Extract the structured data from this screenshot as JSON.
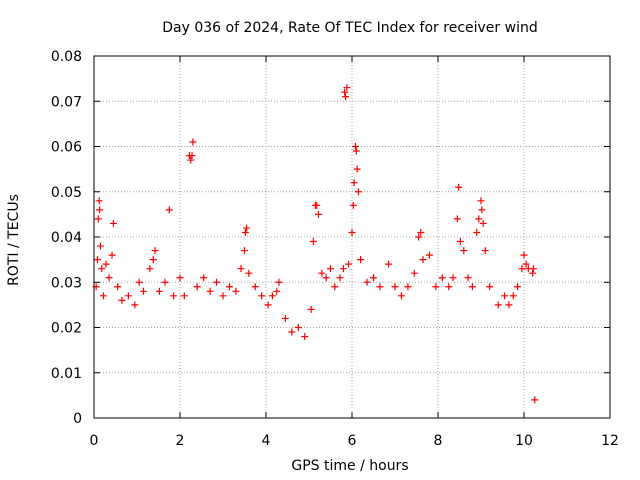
{
  "chart_data": {
    "type": "scatter",
    "title": "Day 036 of 2024, Rate Of TEC Index for receiver wind",
    "xlabel": "GPS time / hours",
    "ylabel": "ROTI / TECUs",
    "xlim": [
      0,
      12
    ],
    "ylim": [
      0,
      0.08
    ],
    "grid": true,
    "marker": "+",
    "xticks": [
      0,
      2,
      4,
      6,
      8,
      10,
      12
    ],
    "xtick_labels": [
      "0",
      "2",
      "4",
      "6",
      "8",
      "10",
      "12"
    ],
    "yticks": [
      0,
      0.01,
      0.02,
      0.03,
      0.04,
      0.05,
      0.06,
      0.07,
      0.08
    ],
    "ytick_labels": [
      "0",
      "0.01",
      "0.02",
      "0.03",
      "0.04",
      "0.05",
      "0.06",
      "0.07",
      "0.08"
    ],
    "colors": {
      "points": "#ff0000",
      "grid": "#a0a0a0",
      "axes": "#000000",
      "background": "#ffffff"
    },
    "series": [
      {
        "name": "ROTI",
        "points": [
          [
            0.05,
            0.029
          ],
          [
            0.08,
            0.035
          ],
          [
            0.1,
            0.044
          ],
          [
            0.12,
            0.048
          ],
          [
            0.13,
            0.046
          ],
          [
            0.15,
            0.038
          ],
          [
            0.18,
            0.033
          ],
          [
            0.22,
            0.027
          ],
          [
            0.28,
            0.034
          ],
          [
            0.35,
            0.031
          ],
          [
            0.42,
            0.036
          ],
          [
            0.45,
            0.043
          ],
          [
            0.55,
            0.029
          ],
          [
            0.65,
            0.026
          ],
          [
            0.8,
            0.027
          ],
          [
            0.95,
            0.025
          ],
          [
            1.05,
            0.03
          ],
          [
            1.15,
            0.028
          ],
          [
            1.3,
            0.033
          ],
          [
            1.38,
            0.035
          ],
          [
            1.42,
            0.037
          ],
          [
            1.52,
            0.028
          ],
          [
            1.65,
            0.03
          ],
          [
            1.75,
            0.046
          ],
          [
            1.85,
            0.027
          ],
          [
            2.0,
            0.031
          ],
          [
            2.1,
            0.027
          ],
          [
            2.22,
            0.058
          ],
          [
            2.25,
            0.057
          ],
          [
            2.28,
            0.058
          ],
          [
            2.3,
            0.061
          ],
          [
            2.4,
            0.029
          ],
          [
            2.55,
            0.031
          ],
          [
            2.7,
            0.028
          ],
          [
            2.85,
            0.03
          ],
          [
            3.0,
            0.027
          ],
          [
            3.15,
            0.029
          ],
          [
            3.3,
            0.028
          ],
          [
            3.42,
            0.033
          ],
          [
            3.5,
            0.037
          ],
          [
            3.52,
            0.041
          ],
          [
            3.55,
            0.042
          ],
          [
            3.6,
            0.032
          ],
          [
            3.75,
            0.029
          ],
          [
            3.9,
            0.027
          ],
          [
            4.05,
            0.025
          ],
          [
            4.15,
            0.027
          ],
          [
            4.25,
            0.028
          ],
          [
            4.3,
            0.03
          ],
          [
            4.45,
            0.022
          ],
          [
            4.6,
            0.019
          ],
          [
            4.75,
            0.02
          ],
          [
            4.9,
            0.018
          ],
          [
            5.05,
            0.024
          ],
          [
            5.1,
            0.039
          ],
          [
            5.15,
            0.047
          ],
          [
            5.18,
            0.047
          ],
          [
            5.22,
            0.045
          ],
          [
            5.3,
            0.032
          ],
          [
            5.4,
            0.031
          ],
          [
            5.5,
            0.033
          ],
          [
            5.6,
            0.029
          ],
          [
            5.72,
            0.031
          ],
          [
            5.8,
            0.033
          ],
          [
            5.83,
            0.072
          ],
          [
            5.85,
            0.071
          ],
          [
            5.88,
            0.073
          ],
          [
            5.92,
            0.034
          ],
          [
            6.0,
            0.041
          ],
          [
            6.03,
            0.047
          ],
          [
            6.05,
            0.052
          ],
          [
            6.08,
            0.06
          ],
          [
            6.1,
            0.059
          ],
          [
            6.12,
            0.055
          ],
          [
            6.15,
            0.05
          ],
          [
            6.2,
            0.035
          ],
          [
            6.35,
            0.03
          ],
          [
            6.5,
            0.031
          ],
          [
            6.65,
            0.029
          ],
          [
            6.85,
            0.034
          ],
          [
            7.0,
            0.029
          ],
          [
            7.15,
            0.027
          ],
          [
            7.3,
            0.029
          ],
          [
            7.45,
            0.032
          ],
          [
            7.55,
            0.04
          ],
          [
            7.6,
            0.041
          ],
          [
            7.65,
            0.035
          ],
          [
            7.8,
            0.036
          ],
          [
            7.95,
            0.029
          ],
          [
            8.1,
            0.031
          ],
          [
            8.25,
            0.029
          ],
          [
            8.35,
            0.031
          ],
          [
            8.45,
            0.044
          ],
          [
            8.48,
            0.051
          ],
          [
            8.52,
            0.039
          ],
          [
            8.6,
            0.037
          ],
          [
            8.7,
            0.031
          ],
          [
            8.8,
            0.029
          ],
          [
            8.9,
            0.041
          ],
          [
            8.95,
            0.044
          ],
          [
            9.0,
            0.048
          ],
          [
            9.02,
            0.046
          ],
          [
            9.05,
            0.043
          ],
          [
            9.1,
            0.037
          ],
          [
            9.2,
            0.029
          ],
          [
            9.4,
            0.025
          ],
          [
            9.55,
            0.027
          ],
          [
            9.65,
            0.025
          ],
          [
            9.75,
            0.027
          ],
          [
            9.85,
            0.029
          ],
          [
            9.95,
            0.033
          ],
          [
            10.0,
            0.036
          ],
          [
            10.05,
            0.034
          ],
          [
            10.1,
            0.033
          ],
          [
            10.2,
            0.032
          ],
          [
            10.22,
            0.033
          ],
          [
            10.25,
            0.004
          ]
        ]
      }
    ]
  }
}
